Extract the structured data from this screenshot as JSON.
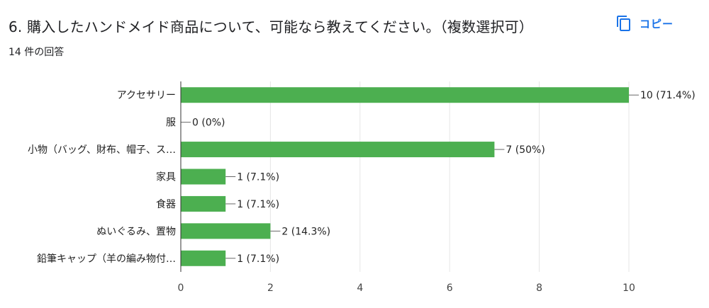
{
  "question": {
    "title": "6. 購入したハンドメイド商品について、可能なら教えてください。（複数選択可）",
    "response_count": "14 件の回答"
  },
  "copy_button": {
    "label": "コピー",
    "icon": "copy-icon"
  },
  "colors": {
    "bar": "#4caf50",
    "accent": "#1a73e8",
    "grid": "#e6e6e6",
    "axis": "#333333"
  },
  "chart_data": {
    "type": "bar",
    "orientation": "horizontal",
    "categories": [
      "アクセサリー",
      "服",
      "小物（バッグ、財布、帽子、ス…",
      "家具",
      "食器",
      "ぬいぐるみ、置物",
      "鉛筆キャップ（羊の編み物付…"
    ],
    "values": [
      10,
      0,
      7,
      1,
      1,
      2,
      1
    ],
    "value_labels": [
      "10 (71.4%)",
      "0 (0%)",
      "7 (50%)",
      "1 (7.1%)",
      "1 (7.1%)",
      "2 (14.3%)",
      "1 (7.1%)"
    ],
    "xlim": [
      0,
      10
    ],
    "x_ticks": [
      0,
      2,
      4,
      6,
      8,
      10
    ],
    "grid": true,
    "legend": "none"
  }
}
